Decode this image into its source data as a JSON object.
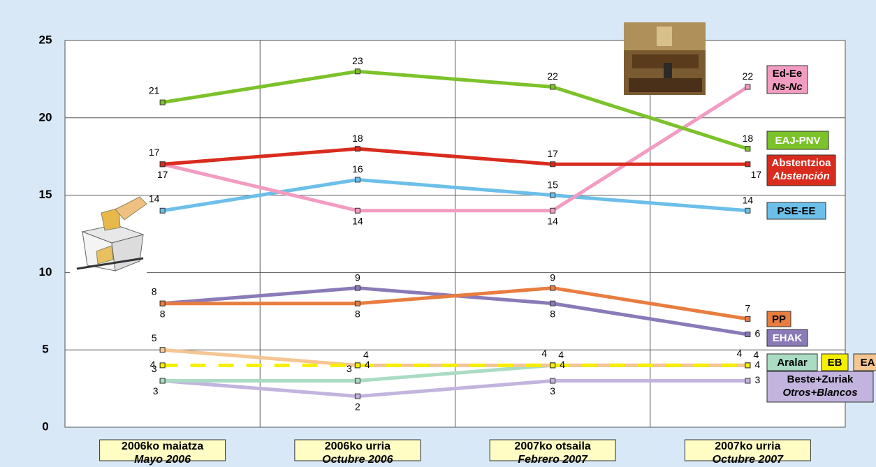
{
  "chart_data": {
    "type": "line",
    "categories": [
      "2006ko maiatza",
      "2006ko urria",
      "2007ko otsaila",
      "2007ko urria"
    ],
    "categories_es": [
      "Mayo 2006",
      "Octubre 2006",
      "Febrero 2007",
      "Octubre 2007"
    ],
    "ylim": [
      0,
      25
    ],
    "yticks": [
      0,
      5,
      10,
      15,
      20,
      25
    ],
    "grid": true,
    "series": [
      {
        "name": "Beste+Zuriak",
        "name_es": "Otros+Blancos",
        "color": "#c2b4de",
        "values": [
          3,
          2,
          3,
          3
        ]
      },
      {
        "name": "Aralar",
        "color": "#aadcc4",
        "values": [
          3,
          3,
          4,
          4
        ]
      },
      {
        "name": "EA",
        "color": "#f5c592",
        "values": [
          5,
          4,
          4,
          4
        ]
      },
      {
        "name": "EB",
        "color": "#f6ef00",
        "values": [
          4,
          4,
          4,
          4
        ]
      },
      {
        "name": "EHAK",
        "color": "#8a7ab8",
        "values": [
          8,
          9,
          8,
          6
        ]
      },
      {
        "name": "PP",
        "color": "#e87d40",
        "values": [
          8,
          8,
          9,
          7
        ]
      },
      {
        "name": "PSE-EE",
        "color": "#6cbfe9",
        "values": [
          14,
          16,
          15,
          14
        ]
      },
      {
        "name": "Ed-Ee",
        "name_es": "Ns-Nc",
        "color": "#f39cc2",
        "values": [
          17,
          14,
          14,
          22
        ]
      },
      {
        "name": "Abstentzioa",
        "name_es": "Abstención",
        "color": "#d92c1e",
        "values": [
          17,
          18,
          17,
          17
        ]
      },
      {
        "name": "EAJ-PNV",
        "color": "#7cc22a",
        "values": [
          21,
          23,
          22,
          18
        ]
      }
    ]
  }
}
